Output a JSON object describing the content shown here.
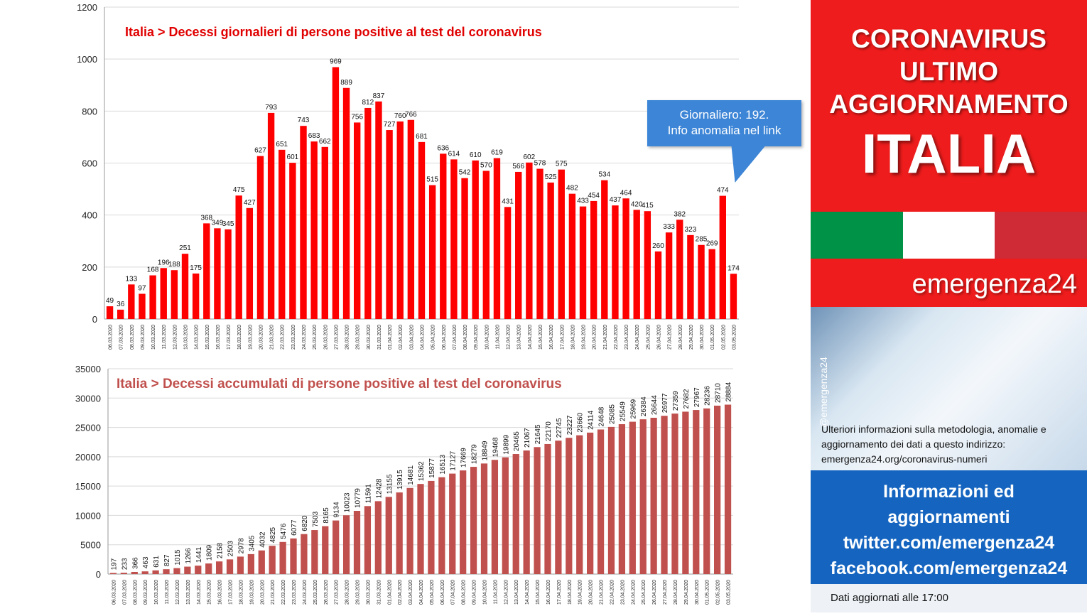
{
  "side": {
    "header_lines": [
      "CORONAVIRUS",
      "ULTIMO",
      "AGGIORNAMENTO"
    ],
    "country": "ITALIA",
    "flag_colors": [
      "#009246",
      "#ffffff",
      "#ce2b37"
    ],
    "brand": "emergenza24",
    "handle": "@emergenza24",
    "info_text": "Ulteriori informazioni sulla metodologia, anomalie e aggiornamento dei dati a questo indirizzo: emergenza24.org/coronavirus-numeri",
    "social_lines": [
      "Informazioni ed",
      "aggiornamenti",
      "twitter.com/emergenza24",
      "facebook.com/emergenza24"
    ],
    "updated": "Dati aggiornati alle 17:00"
  },
  "callout": {
    "line1": "Giornaliero: 192.",
    "line2": "Info anomalia nel link"
  },
  "colors": {
    "red_panel": "#ee1c1c",
    "blue_panel": "#1565c0",
    "daily_bar": "#ff0000",
    "cumulative_bar": "#c0504d"
  },
  "chart_data": [
    {
      "type": "bar",
      "title": "Italia > Decessi giornalieri di persone positive al test del coronavirus",
      "xlabel": "",
      "ylabel": "",
      "ylim": [
        0,
        1200
      ],
      "yticks": [
        0,
        200,
        400,
        600,
        800,
        1000,
        1200
      ],
      "grid": true,
      "categories": [
        "06.03.2020",
        "07.03.2020",
        "08.03.2020",
        "09.03.2020",
        "10.03.2020",
        "11.03.2020",
        "12.03.2020",
        "13.03.2020",
        "14.03.2020",
        "15.03.2020",
        "16.03.2020",
        "17.03.2020",
        "18.03.2020",
        "19.03.2020",
        "20.03.2020",
        "21.03.2020",
        "22.03.2020",
        "23.03.2020",
        "24.03.2020",
        "25.03.2020",
        "26.03.2020",
        "27.03.2020",
        "28.03.2020",
        "29.03.2020",
        "30.03.2020",
        "31.03.2020",
        "01.04.2020",
        "02.04.2020",
        "03.04.2020",
        "04.04.2020",
        "05.04.2020",
        "06.04.2020",
        "07.04.2020",
        "08.04.2020",
        "09.04.2020",
        "10.04.2020",
        "11.04.2020",
        "12.04.2020",
        "13.04.2020",
        "14.04.2020",
        "15.04.2020",
        "16.04.2020",
        "17.04.2020",
        "18.04.2020",
        "19.04.2020",
        "20.04.2020",
        "21.04.2020",
        "22.04.2020",
        "23.04.2020",
        "24.04.2020",
        "25.04.2020",
        "26.04.2020",
        "27.04.2020",
        "28.04.2020",
        "29.04.2020",
        "30.04.2020",
        "01.05.2020",
        "02.05.2020",
        "03.05.2020"
      ],
      "values": [
        49,
        36,
        133,
        97,
        168,
        196,
        188,
        251,
        175,
        368,
        349,
        345,
        475,
        427,
        627,
        793,
        651,
        601,
        743,
        683,
        662,
        969,
        889,
        756,
        812,
        837,
        727,
        760,
        766,
        681,
        515,
        636,
        614,
        542,
        610,
        570,
        619,
        431,
        566,
        602,
        578,
        525,
        575,
        482,
        433,
        454,
        534,
        437,
        464,
        420,
        415,
        260,
        333,
        382,
        323,
        285,
        269,
        474,
        174
      ]
    },
    {
      "type": "bar",
      "title": "Italia > Decessi accumulati di persone positive al test del coronavirus",
      "xlabel": "",
      "ylabel": "",
      "ylim": [
        0,
        35000
      ],
      "yticks": [
        0,
        5000,
        10000,
        15000,
        20000,
        25000,
        30000,
        35000
      ],
      "grid": true,
      "categories": [
        "06.03.2020",
        "07.03.2020",
        "08.03.2020",
        "09.03.2020",
        "10.03.2020",
        "11.03.2020",
        "12.03.2020",
        "13.03.2020",
        "14.03.2020",
        "15.03.2020",
        "16.03.2020",
        "17.03.2020",
        "18.03.2020",
        "19.03.2020",
        "20.03.2020",
        "21.03.2020",
        "22.03.2020",
        "23.03.2020",
        "24.03.2020",
        "25.03.2020",
        "26.03.2020",
        "27.03.2020",
        "28.03.2020",
        "29.03.2020",
        "30.03.2020",
        "31.03.2020",
        "01.04.2020",
        "02.04.2020",
        "03.04.2020",
        "04.04.2020",
        "05.04.2020",
        "06.04.2020",
        "07.04.2020",
        "08.04.2020",
        "09.04.2020",
        "10.04.2020",
        "11.04.2020",
        "12.04.2020",
        "13.04.2020",
        "14.04.2020",
        "15.04.2020",
        "16.04.2020",
        "17.04.2020",
        "18.04.2020",
        "19.04.2020",
        "20.04.2020",
        "21.04.2020",
        "22.04.2020",
        "23.04.2020",
        "24.04.2020",
        "25.04.2020",
        "26.04.2020",
        "27.04.2020",
        "28.04.2020",
        "29.04.2020",
        "30.04.2020",
        "01.05.2020",
        "02.05.2020",
        "03.05.2020"
      ],
      "values": [
        197,
        233,
        366,
        463,
        631,
        827,
        1015,
        1266,
        1441,
        1809,
        2158,
        2503,
        2978,
        3405,
        4032,
        4825,
        5476,
        6077,
        6820,
        7503,
        8165,
        9134,
        10023,
        10779,
        11591,
        12428,
        13155,
        13915,
        14681,
        15362,
        15877,
        16513,
        17127,
        17669,
        18279,
        18849,
        19468,
        19899,
        20465,
        21067,
        21645,
        22170,
        22745,
        23227,
        23660,
        24114,
        24648,
        25085,
        25549,
        25969,
        26384,
        26644,
        26977,
        27359,
        27682,
        27967,
        28236,
        28710,
        28884
      ]
    }
  ]
}
